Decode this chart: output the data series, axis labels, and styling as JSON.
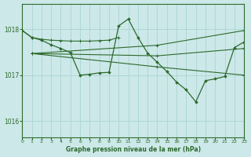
{
  "bg_color": "#cce8e8",
  "grid_color": "#aad4d4",
  "line_color": "#2d6a2d",
  "xlabel": "Graphe pression niveau de la mer (hPa)",
  "ylim": [
    1015.65,
    1018.55
  ],
  "xlim": [
    0,
    23
  ],
  "yticks": [
    1016,
    1017,
    1018
  ],
  "xticks": [
    0,
    1,
    2,
    3,
    4,
    5,
    6,
    7,
    8,
    9,
    10,
    11,
    12,
    13,
    14,
    15,
    16,
    17,
    18,
    19,
    20,
    21,
    22,
    23
  ],
  "line1_x": [
    0,
    1,
    2,
    3,
    4,
    5,
    6,
    7,
    8,
    9,
    10
  ],
  "line1_y": [
    1017.97,
    1017.82,
    1017.78,
    1017.76,
    1017.75,
    1017.74,
    1017.74,
    1017.74,
    1017.75,
    1017.76,
    1017.82
  ],
  "line2_x": [
    1,
    14,
    23
  ],
  "line2_y": [
    1017.47,
    1017.18,
    1017.0
  ],
  "line3_x": [
    1,
    14,
    23
  ],
  "line3_y": [
    1017.47,
    1017.42,
    1017.58
  ],
  "line4_x": [
    1,
    14,
    23
  ],
  "line4_y": [
    1017.47,
    1017.65,
    1017.97
  ],
  "zigzag_x": [
    0,
    1,
    2,
    3,
    4,
    5,
    6,
    7,
    8,
    9,
    10,
    11,
    12,
    13,
    14,
    15,
    16,
    17,
    18,
    19,
    20,
    21,
    22,
    23
  ],
  "zigzag_y": [
    1017.97,
    1017.82,
    1017.76,
    1017.66,
    1017.58,
    1017.49,
    1017.0,
    1017.02,
    1017.05,
    1017.06,
    1018.07,
    1018.22,
    1017.82,
    1017.48,
    1017.28,
    1017.08,
    1016.85,
    1016.68,
    1016.42,
    1016.88,
    1016.92,
    1016.97,
    1017.6,
    1017.72
  ]
}
